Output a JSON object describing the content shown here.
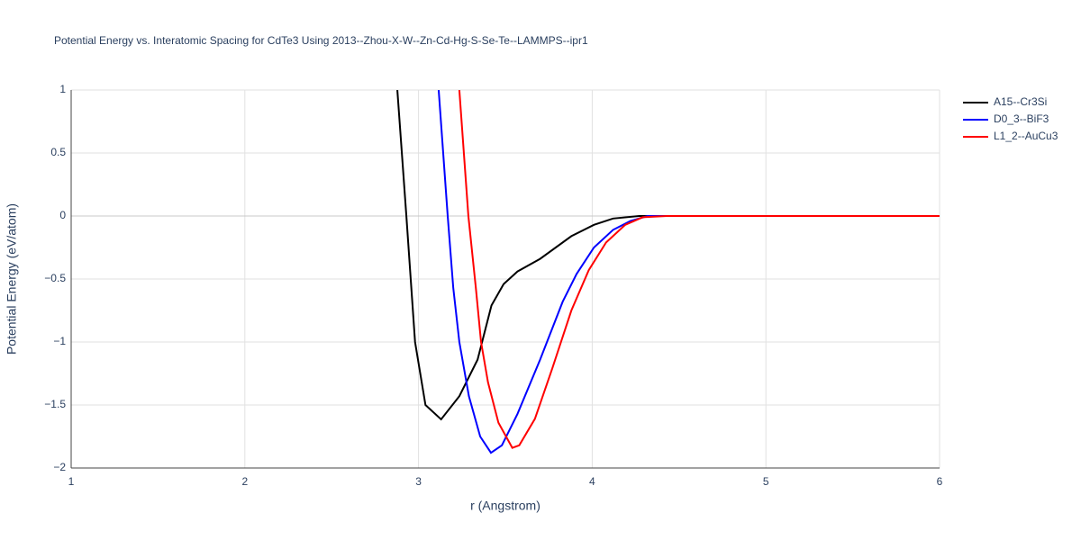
{
  "chart_data": {
    "type": "line",
    "title": "Potential Energy vs. Interatomic Spacing for CdTe3 Using 2013--Zhou-X-W--Zn-Cd-Hg-S-Se-Te--LAMMPS--ipr1",
    "x_label": "r (Angstrom)",
    "y_label": "Potential Energy (eV/atom)",
    "xlim": [
      1,
      6
    ],
    "ylim": [
      -2,
      1
    ],
    "xticks": [
      1,
      2,
      3,
      4,
      5,
      6
    ],
    "yticks": [
      {
        "value": -2,
        "label": "−2"
      },
      {
        "value": -1.5,
        "label": "−1.5"
      },
      {
        "value": -1,
        "label": "−1"
      },
      {
        "value": -0.5,
        "label": "−0.5"
      },
      0,
      0.5,
      1
    ],
    "grid": true,
    "legend": "right",
    "series": [
      {
        "name": "A15--Cr3Si",
        "color": "#000000",
        "x": [
          2.878,
          2.93,
          2.955,
          2.98,
          3.04,
          3.13,
          3.235,
          3.34,
          3.42,
          3.49,
          3.57,
          3.7,
          3.88,
          4.01,
          4.12,
          4.27,
          6
        ],
        "values": [
          1,
          0,
          -0.5,
          -1,
          -1.5,
          -1.614,
          -1.43,
          -1.14,
          -0.71,
          -0.54,
          -0.44,
          -0.34,
          -0.16,
          -0.07,
          -0.02,
          0,
          0
        ]
      },
      {
        "name": "D0_3--BiF3",
        "color": "#0000ff",
        "x": [
          3.116,
          3.168,
          3.2,
          3.235,
          3.29,
          3.355,
          3.417,
          3.48,
          3.57,
          3.7,
          3.83,
          3.91,
          4.01,
          4.12,
          4.22,
          4.32,
          6
        ],
        "values": [
          1,
          0,
          -0.57,
          -1,
          -1.43,
          -1.75,
          -1.879,
          -1.82,
          -1.57,
          -1.14,
          -0.68,
          -0.46,
          -0.25,
          -0.11,
          -0.04,
          0,
          0
        ]
      },
      {
        "name": "L1_2--AuCu3",
        "color": "#ff0000",
        "x": [
          3.235,
          3.287,
          3.33,
          3.36,
          3.4,
          3.46,
          3.54,
          3.58,
          3.67,
          3.77,
          3.88,
          3.98,
          4.08,
          4.19,
          4.29,
          4.43,
          6
        ],
        "values": [
          1,
          0,
          -0.57,
          -1,
          -1.32,
          -1.64,
          -1.84,
          -1.82,
          -1.61,
          -1.21,
          -0.75,
          -0.43,
          -0.21,
          -0.07,
          -0.01,
          0,
          0
        ]
      }
    ]
  }
}
